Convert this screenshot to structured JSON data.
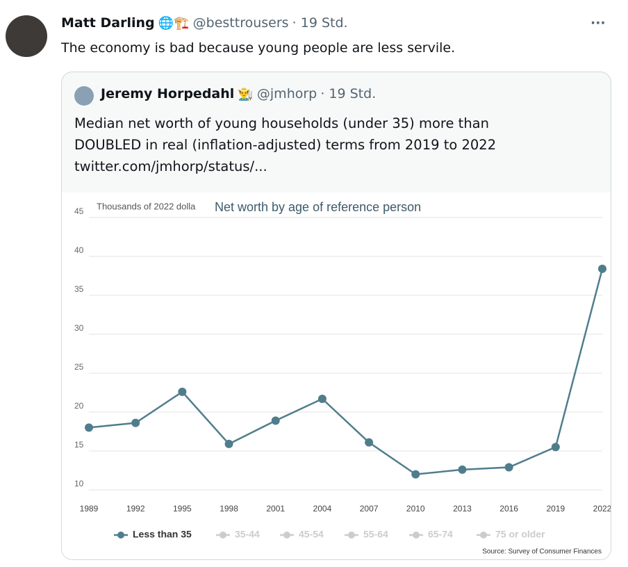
{
  "tweet": {
    "author": {
      "name": "Matt Darling",
      "emoji": "🌐🏗️",
      "handle": "@besttrousers",
      "time": "· 19 Std."
    },
    "menu": "···",
    "text": "The economy is bad because young people are less servile.",
    "quoted": {
      "author": {
        "name": "Jeremy Horpedahl",
        "emoji": "👨‍🌾",
        "handle": "@jmhorp",
        "time": "· 19 Std."
      },
      "lines": [
        "Median net worth of young households (under 35) more than",
        "DOUBLED in real (inflation-adjusted) terms from 2019 to 2022",
        "twitter.com/jmhorp/status/..."
      ]
    }
  },
  "chart_data": {
    "type": "line",
    "title": "Net worth by age of reference person",
    "subtitle": "Thousands of 2022 dolla",
    "source": "Source: Survey of Consumer Finances",
    "categories": [
      "1989",
      "1992",
      "1995",
      "1998",
      "2001",
      "2004",
      "2007",
      "2010",
      "2013",
      "2016",
      "2019",
      "2022"
    ],
    "series": [
      {
        "name": "Less than 35",
        "color": "#507d8c",
        "visible": true,
        "values": [
          18.0,
          18.6,
          22.6,
          15.9,
          18.9,
          21.7,
          16.1,
          12.0,
          12.6,
          12.9,
          15.5,
          38.4
        ]
      },
      {
        "name": "35-44",
        "color": "#cccccc",
        "visible": false,
        "values": [
          null,
          null,
          null,
          null,
          null,
          null,
          null,
          null,
          null,
          null,
          null,
          null
        ]
      },
      {
        "name": "45-54",
        "color": "#cccccc",
        "visible": false,
        "values": [
          null,
          null,
          null,
          null,
          null,
          null,
          null,
          null,
          null,
          null,
          null,
          null
        ]
      },
      {
        "name": "55-64",
        "color": "#cccccc",
        "visible": false,
        "values": [
          null,
          null,
          null,
          null,
          null,
          null,
          null,
          null,
          null,
          null,
          null,
          null
        ]
      },
      {
        "name": "65-74",
        "color": "#cccccc",
        "visible": false,
        "values": [
          null,
          null,
          null,
          null,
          null,
          null,
          null,
          null,
          null,
          null,
          null,
          null
        ]
      },
      {
        "name": "75 or older",
        "color": "#cccccc",
        "visible": false,
        "values": [
          null,
          null,
          null,
          null,
          null,
          null,
          null,
          null,
          null,
          null,
          null,
          null
        ]
      }
    ],
    "ylim": [
      10,
      45
    ],
    "yticks": [
      10,
      15,
      20,
      25,
      30,
      35,
      40,
      45
    ],
    "grid": true,
    "legend": "bottom"
  }
}
